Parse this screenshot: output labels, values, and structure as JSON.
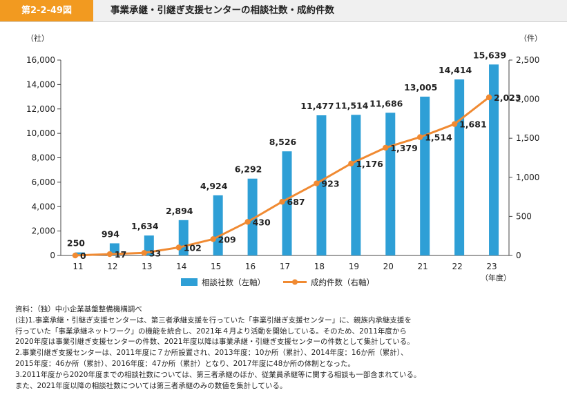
{
  "header": {
    "figure_number": "第2-2-49図",
    "title": "事業承継・引継ぎ支援センターの相談社数・成約件数"
  },
  "colors": {
    "accent_orange": "#f29a20",
    "bar": "#2e9fd6",
    "line": "#f08a32",
    "header_bg": "#f0f0f0"
  },
  "chart_data": {
    "type": "bar",
    "categories": [
      "11",
      "12",
      "13",
      "14",
      "15",
      "16",
      "17",
      "18",
      "19",
      "20",
      "21",
      "22",
      "23"
    ],
    "series": [
      {
        "name": "相談社数（左軸）",
        "type": "bar",
        "axis": "left",
        "values": [
          250,
          994,
          1634,
          2894,
          4924,
          6292,
          8526,
          11477,
          11514,
          11686,
          13005,
          14414,
          15639
        ],
        "labels": [
          "250",
          "994",
          "1,634",
          "2,894",
          "4,924",
          "6,292",
          "8,526",
          "11,477",
          "11,514",
          "11,686",
          "13,005",
          "14,414",
          "15,639"
        ]
      },
      {
        "name": "成約件数（右軸）",
        "type": "line",
        "axis": "right",
        "values": [
          0,
          17,
          33,
          102,
          209,
          430,
          687,
          923,
          1176,
          1379,
          1514,
          1681,
          2023
        ],
        "labels": [
          "0",
          "17",
          "33",
          "102",
          "209",
          "430",
          "687",
          "923",
          "1,176",
          "1,379",
          "1,514",
          "1,681",
          "2,023"
        ]
      }
    ],
    "y_left": {
      "unit": "（社）",
      "range": [
        0,
        16000
      ],
      "ticks": [
        0,
        2000,
        4000,
        6000,
        8000,
        10000,
        12000,
        14000,
        16000
      ],
      "tick_labels": [
        "0",
        "2,000",
        "4,000",
        "6,000",
        "8,000",
        "10,000",
        "12,000",
        "14,000",
        "16,000"
      ]
    },
    "y_right": {
      "unit": "（件）",
      "range": [
        0,
        2500
      ],
      "ticks": [
        0,
        500,
        1000,
        1500,
        2000,
        2500
      ],
      "tick_labels": [
        "0",
        "500",
        "1,000",
        "1,500",
        "2,000",
        "2,500"
      ]
    },
    "xlabel": "（年度）",
    "grid": false,
    "legend_position": "bottom"
  },
  "notes": {
    "source": "資料：（独）中小企業基盤整備機構調べ",
    "lines": [
      "(注)1.事業承継・引継ぎ支援センターは、第三者承継支援を行っていた「事業引継ぎ支援センター」に、親族内承継支援を",
      "行っていた「事業承継ネットワーク」の機能を統合し、2021年４月より活動を開始している。そのため、2011年度から",
      "2020年度は事業引継ぎ支援センターの件数、2021年度以降は事業承継・引継ぎ支援センターの件数として集計している。",
      "2.事業引継ぎ支援センターは、2011年度に７か所設置され、2013年度：10か所（累計）、2014年度：16か所（累計）、",
      "2015年度：46か所（累計）、2016年度：47か所（累計）となり、2017年度に48か所の体制となった。",
      "3.2011年度から2020年度までの相談社数については、第三者承継のほか、従業員承継等に関する相談も一部含まれている。",
      "また、2021年度以降の相談社数については第三者承継のみの数値を集計している。"
    ]
  }
}
